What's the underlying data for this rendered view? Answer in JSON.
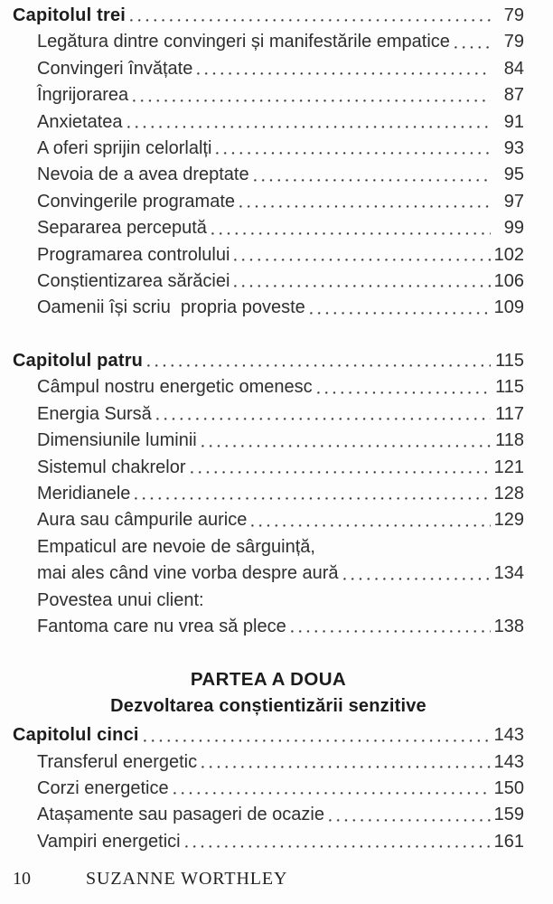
{
  "colors": {
    "background": "#fdfdfd",
    "text": "#2f2f2f",
    "heading": "#1d1d1d"
  },
  "toc": {
    "sections": [
      {
        "title": "Capitolul trei",
        "page": "79",
        "entries": [
          {
            "label": "Legătura dintre convingeri și manifestările empatice",
            "page": "79"
          },
          {
            "label": "Convingeri învățate",
            "page": "84"
          },
          {
            "label": "Îngrijorarea",
            "page": "87"
          },
          {
            "label": "Anxietatea",
            "page": "91"
          },
          {
            "label": "A oferi sprijin celorlalți",
            "page": "93"
          },
          {
            "label": "Nevoia de a avea dreptate",
            "page": "95"
          },
          {
            "label": "Convingerile programate",
            "page": "97"
          },
          {
            "label": "Separarea percepută",
            "page": "99"
          },
          {
            "label": "Programarea controlului",
            "page": "102"
          },
          {
            "label": "Conștientizarea sărăciei",
            "page": "106"
          },
          {
            "label": "Oamenii își scriu  propria poveste",
            "page": "109"
          }
        ]
      },
      {
        "title": "Capitolul patru",
        "page": "115",
        "entries": [
          {
            "label": "Câmpul nostru energetic omenesc",
            "page": "115"
          },
          {
            "label": "Energia Sursă",
            "page": "117"
          },
          {
            "label": "Dimensiunile luminii",
            "page": "118"
          },
          {
            "label": "Sistemul chakrelor",
            "page": "121"
          },
          {
            "label": "Meridianele",
            "page": "128"
          },
          {
            "label": "Aura sau câmpurile aurice",
            "page": "129"
          },
          {
            "label": "Empaticul are nevoie de sârguință,",
            "page": ""
          },
          {
            "label": "mai ales când vine vorba despre aură",
            "page": "134"
          },
          {
            "label": "Povestea unui client:",
            "page": ""
          },
          {
            "label": "Fantoma care nu vrea să plece",
            "page": "138"
          }
        ]
      },
      {
        "title": "Capitolul cinci",
        "page": "143",
        "entries": [
          {
            "label": "Transferul energetic",
            "page": "143"
          },
          {
            "label": "Corzi energetice",
            "page": "150"
          },
          {
            "label": "Atașamente sau pasageri de ocazie",
            "page": "159"
          },
          {
            "label": "Vampiri energetici",
            "page": "161"
          }
        ]
      }
    ],
    "part_heading": {
      "title": "PARTEA A DOUA",
      "subtitle": "Dezvoltarea conștientizării senzitive"
    }
  },
  "footer": {
    "page_number": "10",
    "author": "SUZANNE WORTHLEY"
  }
}
